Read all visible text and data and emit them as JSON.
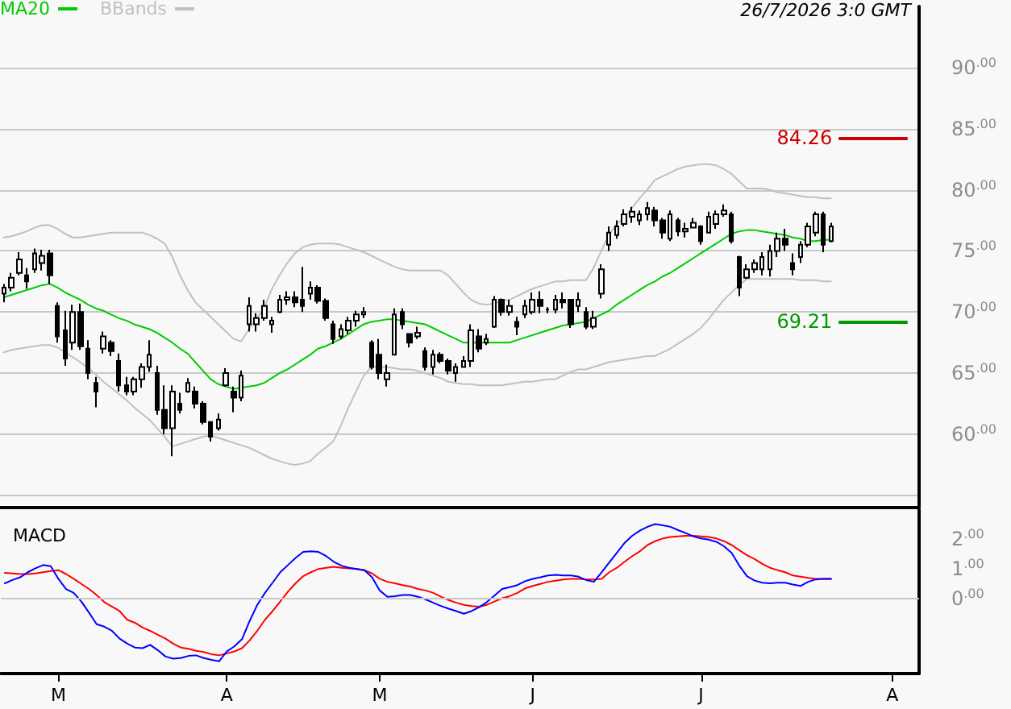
{
  "chart_data": [
    {
      "type": "candlestick",
      "color": "#000000",
      "categories": [
        null,
        null,
        null,
        null,
        null,
        null,
        null,
        null,
        null,
        null,
        null,
        null,
        null,
        null,
        null,
        null,
        null,
        null,
        null,
        null,
        null,
        null,
        null,
        null,
        null,
        null,
        null,
        null,
        null,
        null,
        null,
        null,
        null,
        null,
        null,
        null,
        null,
        null,
        null,
        null,
        null,
        null,
        null,
        null,
        null,
        null,
        null,
        null,
        null,
        null,
        null,
        null,
        null,
        null,
        null,
        null,
        null,
        null,
        null,
        null,
        null,
        null,
        null,
        null,
        null,
        null,
        null,
        null,
        null,
        null,
        null,
        null,
        null,
        null,
        null,
        null,
        null,
        null,
        null,
        null,
        null,
        null,
        null,
        null,
        null,
        null,
        null,
        null,
        null,
        null,
        null,
        null,
        null,
        null,
        null,
        null,
        null,
        null,
        null,
        null,
        null,
        null,
        null,
        null,
        null,
        null,
        null,
        null,
        null,
        null,
        null,
        null,
        null,
        null,
        null,
        null,
        null,
        null,
        null,
        null
      ],
      "ohlc": [
        [
          71.5,
          72.3,
          70.8,
          72.0
        ],
        [
          72.0,
          73.2,
          71.7,
          72.8
        ],
        [
          73.2,
          74.9,
          73.0,
          74.3
        ],
        [
          73.0,
          73.6,
          71.9,
          72.5
        ],
        [
          73.5,
          75.2,
          73.2,
          74.8
        ],
        [
          74.0,
          75.1,
          73.4,
          74.6
        ],
        [
          74.8,
          75.1,
          72.3,
          73.0
        ],
        [
          70.5,
          70.8,
          67.5,
          68.0
        ],
        [
          68.5,
          70.1,
          65.6,
          66.2
        ],
        [
          67.5,
          70.6,
          66.9,
          70.0
        ],
        [
          70.0,
          70.7,
          66.9,
          67.2
        ],
        [
          67.0,
          67.7,
          64.5,
          65.0
        ],
        [
          64.2,
          64.7,
          62.2,
          63.5
        ],
        [
          67.0,
          68.4,
          66.6,
          68.0
        ],
        [
          67.5,
          67.7,
          66.4,
          66.8
        ],
        [
          66.0,
          66.6,
          63.5,
          64.0
        ],
        [
          64.0,
          64.7,
          63.2,
          63.5
        ],
        [
          63.5,
          64.7,
          63.2,
          64.5
        ],
        [
          64.5,
          65.8,
          63.8,
          65.5
        ],
        [
          65.5,
          67.7,
          65.1,
          66.5
        ],
        [
          65.0,
          65.6,
          61.6,
          62.0
        ],
        [
          62.0,
          64.0,
          60.0,
          60.5
        ],
        [
          60.5,
          64.0,
          58.2,
          63.5
        ],
        [
          62.5,
          63.4,
          61.7,
          62.0
        ],
        [
          63.5,
          64.6,
          63.4,
          64.2
        ],
        [
          63.5,
          63.9,
          62.1,
          62.5
        ],
        [
          62.5,
          62.7,
          60.8,
          61.0
        ],
        [
          61.0,
          61.0,
          59.4,
          59.8
        ],
        [
          60.5,
          61.7,
          60.3,
          61.2
        ],
        [
          64.0,
          65.4,
          63.9,
          65.0
        ],
        [
          63.5,
          63.9,
          61.8,
          63.0
        ],
        [
          63.0,
          65.2,
          62.7,
          64.8
        ],
        [
          69.0,
          71.2,
          68.4,
          70.5
        ],
        [
          69.0,
          69.9,
          68.4,
          69.5
        ],
        [
          69.5,
          71.0,
          69.3,
          70.5
        ],
        [
          69.0,
          69.6,
          68.3,
          69.3
        ],
        [
          70.0,
          71.4,
          69.9,
          71.0
        ],
        [
          71.0,
          71.7,
          70.6,
          71.2
        ],
        [
          71.2,
          71.7,
          70.4,
          70.8
        ],
        [
          71.0,
          73.7,
          70.0,
          70.5
        ],
        [
          71.5,
          72.5,
          71.0,
          72.0
        ],
        [
          72.0,
          72.2,
          70.7,
          70.9
        ],
        [
          70.9,
          71.1,
          69.3,
          69.5
        ],
        [
          69.0,
          69.3,
          67.4,
          67.8
        ],
        [
          68.0,
          69.0,
          67.8,
          68.6
        ],
        [
          68.5,
          69.6,
          68.2,
          69.3
        ],
        [
          69.3,
          70.1,
          68.8,
          69.8
        ],
        [
          69.8,
          70.4,
          69.5,
          70.0
        ],
        [
          67.5,
          67.7,
          65.3,
          65.5
        ],
        [
          66.5,
          67.8,
          64.5,
          65.0
        ],
        [
          64.5,
          65.7,
          63.9,
          65.0
        ],
        [
          66.5,
          70.3,
          66.5,
          69.8
        ],
        [
          70.0,
          70.3,
          68.6,
          69.0
        ],
        [
          68.2,
          68.2,
          67.1,
          67.5
        ],
        [
          68.0,
          68.8,
          67.8,
          68.3
        ],
        [
          66.8,
          67.1,
          65.2,
          65.5
        ],
        [
          65.5,
          66.9,
          64.9,
          66.5
        ],
        [
          66.5,
          66.7,
          65.8,
          66.0
        ],
        [
          66.0,
          66.2,
          64.9,
          65.2
        ],
        [
          65.0,
          65.8,
          64.3,
          65.5
        ],
        [
          65.5,
          66.4,
          65.5,
          66.0
        ],
        [
          66.0,
          69.0,
          65.5,
          68.5
        ],
        [
          68.0,
          68.6,
          66.7,
          67.0
        ],
        [
          67.5,
          68.2,
          67.3,
          67.8
        ],
        [
          68.8,
          71.3,
          68.7,
          71.0
        ],
        [
          71.0,
          71.1,
          69.7,
          70.0
        ],
        [
          70.0,
          71.0,
          69.7,
          70.5
        ],
        [
          69.2,
          69.6,
          68.1,
          68.8
        ],
        [
          69.8,
          71.0,
          69.5,
          70.5
        ],
        [
          70.0,
          71.6,
          69.8,
          71.0
        ],
        [
          71.0,
          71.7,
          69.9,
          70.5
        ],
        [
          70.2,
          70.4,
          69.9,
          70.2
        ],
        [
          70.2,
          71.4,
          69.9,
          71.0
        ],
        [
          71.0,
          71.6,
          70.3,
          70.8
        ],
        [
          71.0,
          71.0,
          68.7,
          69.0
        ],
        [
          70.5,
          71.6,
          70.0,
          71.0
        ],
        [
          70.0,
          70.4,
          68.6,
          68.8
        ],
        [
          68.8,
          70.1,
          68.6,
          69.5
        ],
        [
          71.5,
          73.9,
          71.1,
          73.5
        ],
        [
          75.5,
          77.0,
          75.0,
          76.5
        ],
        [
          76.3,
          77.5,
          76.0,
          77.0
        ],
        [
          77.2,
          78.4,
          77.0,
          78.0
        ],
        [
          77.8,
          78.6,
          77.3,
          78.2
        ],
        [
          77.5,
          78.3,
          77.1,
          78.0
        ],
        [
          78.0,
          79.0,
          77.5,
          78.5
        ],
        [
          78.3,
          78.6,
          77.0,
          77.5
        ],
        [
          77.5,
          77.7,
          76.0,
          76.5
        ],
        [
          76.0,
          78.3,
          75.8,
          78.0
        ],
        [
          77.5,
          77.7,
          76.2,
          76.6
        ],
        [
          76.6,
          77.3,
          76.1,
          76.8
        ],
        [
          76.9,
          77.7,
          76.9,
          77.3
        ],
        [
          77.0,
          77.1,
          75.5,
          75.8
        ],
        [
          76.5,
          78.2,
          76.5,
          77.8
        ],
        [
          77.2,
          78.3,
          76.8,
          78.0
        ],
        [
          78.0,
          78.8,
          77.8,
          78.3
        ],
        [
          78.0,
          78.2,
          75.6,
          75.8
        ],
        [
          74.5,
          74.6,
          71.3,
          72.0
        ],
        [
          72.8,
          73.9,
          72.7,
          73.5
        ],
        [
          73.5,
          74.3,
          73.2,
          74.0
        ],
        [
          73.5,
          74.9,
          73.0,
          74.5
        ],
        [
          73.5,
          75.5,
          72.9,
          75.0
        ],
        [
          75.0,
          76.5,
          74.5,
          76.0
        ],
        [
          76.0,
          76.8,
          75.0,
          75.5
        ],
        [
          74.0,
          74.8,
          73.0,
          73.5
        ],
        [
          74.5,
          75.8,
          74.0,
          75.5
        ],
        [
          75.5,
          77.3,
          75.3,
          77.0
        ],
        [
          76.5,
          78.2,
          76.2,
          78.0
        ],
        [
          78.0,
          78.2,
          74.9,
          75.5
        ],
        [
          75.8,
          77.3,
          75.7,
          77.0
        ],
        null,
        null,
        null,
        null,
        null,
        null,
        null,
        null,
        null,
        null,
        null
      ],
      "series": [
        {
          "type": "line",
          "name": "MA20",
          "color": "#00cc00",
          "values": [
            71.2,
            71.4,
            71.6,
            71.8,
            72.0,
            72.2,
            72.3,
            72.0,
            71.6,
            71.3,
            71.0,
            70.6,
            70.3,
            70.1,
            69.8,
            69.5,
            69.3,
            69.0,
            68.8,
            68.6,
            68.3,
            67.9,
            67.5,
            67.0,
            66.6,
            65.9,
            65.2,
            64.5,
            64.1,
            63.9,
            63.7,
            63.8,
            63.9,
            64.0,
            64.2,
            64.6,
            65.0,
            65.3,
            65.7,
            66.1,
            66.5,
            67.0,
            67.2,
            67.5,
            67.8,
            68.2,
            68.6,
            69.0,
            69.2,
            69.3,
            69.4,
            69.4,
            69.3,
            69.2,
            69.1,
            69.0,
            68.7,
            68.4,
            68.1,
            67.8,
            67.5,
            67.5,
            67.5,
            67.5,
            67.5,
            67.5,
            67.5,
            67.7,
            67.9,
            68.1,
            68.3,
            68.5,
            68.7,
            68.9,
            69.0,
            69.1,
            69.2,
            69.5,
            69.8,
            70.1,
            70.6,
            71.0,
            71.4,
            71.8,
            72.2,
            72.5,
            72.9,
            73.2,
            73.6,
            74.0,
            74.4,
            74.8,
            75.2,
            75.6,
            76.0,
            76.4,
            76.6,
            76.7,
            76.7,
            76.6,
            76.5,
            76.4,
            76.3,
            76.1,
            76.0,
            75.8,
            75.8,
            75.9,
            75.9,
            null,
            null,
            null,
            null,
            null,
            null,
            null,
            null,
            null,
            null,
            null
          ]
        },
        {
          "type": "line",
          "name": "BBands",
          "color": "#c0c0c0",
          "values": [
            76.1,
            76.2,
            76.4,
            76.6,
            76.9,
            77.1,
            77.1,
            76.8,
            76.4,
            76.1,
            76.1,
            76.2,
            76.3,
            76.4,
            76.5,
            76.5,
            76.5,
            76.5,
            76.5,
            76.3,
            76.0,
            75.6,
            74.5,
            73.0,
            71.8,
            70.8,
            70.2,
            69.6,
            69.0,
            68.4,
            67.8,
            67.6,
            68.6,
            69.5,
            70.3,
            71.9,
            73.0,
            74.0,
            74.8,
            75.3,
            75.5,
            75.6,
            75.6,
            75.6,
            75.5,
            75.3,
            75.1,
            74.9,
            74.6,
            74.3,
            74.0,
            73.7,
            73.5,
            73.4,
            73.4,
            73.4,
            73.4,
            73.4,
            73.0,
            72.3,
            71.6,
            71.0,
            70.7,
            70.6,
            70.7,
            70.9,
            71.0,
            71.3,
            71.6,
            71.9,
            72.1,
            72.3,
            72.5,
            72.5,
            72.6,
            72.6,
            72.6,
            73.6,
            75.0,
            76.3,
            77.2,
            77.7,
            78.5,
            79.3,
            80.0,
            80.8,
            81.1,
            81.4,
            81.7,
            81.9,
            82.0,
            82.1,
            82.1,
            82.0,
            81.7,
            81.3,
            80.7,
            80.1,
            80.1,
            80.1,
            80.0,
            79.8,
            79.7,
            79.6,
            79.5,
            79.4,
            79.4,
            79.3,
            79.3,
            null,
            null,
            null,
            null,
            null,
            null,
            null,
            null,
            null,
            null,
            null
          ]
        },
        {
          "type": "line",
          "color": "#c0c0c0",
          "values": [
            66.7,
            66.9,
            67.0,
            67.1,
            67.2,
            67.3,
            67.3,
            67.1,
            66.7,
            66.3,
            65.9,
            65.4,
            64.9,
            64.3,
            63.8,
            63.3,
            62.8,
            62.2,
            61.7,
            61.2,
            60.5,
            59.8,
            59.0,
            59.2,
            59.4,
            59.6,
            59.8,
            59.9,
            59.7,
            59.5,
            59.3,
            59.1,
            58.9,
            58.6,
            58.3,
            58.0,
            57.8,
            57.6,
            57.5,
            57.6,
            57.8,
            58.4,
            58.9,
            59.4,
            60.7,
            62.2,
            63.5,
            64.8,
            65.5,
            65.5,
            65.5,
            65.4,
            65.3,
            65.3,
            65.2,
            65.0,
            64.8,
            64.6,
            64.3,
            64.2,
            64.1,
            64.1,
            64.0,
            64.0,
            64.0,
            64.0,
            64.1,
            64.2,
            64.3,
            64.3,
            64.4,
            64.5,
            64.5,
            64.8,
            65.1,
            65.3,
            65.3,
            65.5,
            65.7,
            65.9,
            66.0,
            66.1,
            66.2,
            66.3,
            66.4,
            66.4,
            66.7,
            67.0,
            67.4,
            67.8,
            68.2,
            68.7,
            69.4,
            70.2,
            71.0,
            71.6,
            72.2,
            72.7,
            72.7,
            72.7,
            72.7,
            72.7,
            72.7,
            72.7,
            72.6,
            72.6,
            72.6,
            72.5,
            72.5,
            null,
            null,
            null,
            null,
            null,
            null,
            null,
            null,
            null,
            null,
            null
          ]
        }
      ],
      "ylim": [
        54,
        95
      ],
      "yticks": [
        {
          "value": 55,
          "label": null
        },
        {
          "value": 60,
          "label": "60.00"
        },
        {
          "value": 65,
          "label": "65.00"
        },
        {
          "value": 70,
          "label": "70.00"
        },
        {
          "value": 75,
          "label": "75.00"
        },
        {
          "value": 80,
          "label": "80.00"
        },
        {
          "value": 85,
          "label": "85.00"
        },
        {
          "value": 90,
          "label": "90.00"
        }
      ],
      "ref_lines": [
        {
          "axis": "y",
          "value": 84.26,
          "label": "84.26",
          "color": "#cc0000"
        },
        {
          "axis": "y",
          "value": 69.21,
          "label": "69.21",
          "color": "#009900"
        }
      ],
      "annotations": [
        "26/7/2026 3:0 GMT"
      ],
      "grid": "y",
      "legend": "top left",
      "marker": "none",
      "line_style": "solid",
      "tick_labels": "y"
    },
    {
      "type": "line",
      "title": "MACD",
      "categories": [
        null,
        null,
        null,
        null,
        null,
        null,
        null,
        "M",
        null,
        null,
        null,
        null,
        null,
        null,
        null,
        null,
        null,
        null,
        null,
        null,
        null,
        null,
        null,
        null,
        null,
        null,
        null,
        null,
        null,
        "A",
        null,
        null,
        null,
        null,
        null,
        null,
        null,
        null,
        null,
        null,
        null,
        null,
        null,
        null,
        null,
        null,
        null,
        null,
        null,
        "M",
        null,
        null,
        null,
        null,
        null,
        null,
        null,
        null,
        null,
        null,
        null,
        null,
        null,
        null,
        null,
        null,
        null,
        null,
        null,
        "J",
        null,
        null,
        null,
        null,
        null,
        null,
        null,
        null,
        null,
        null,
        null,
        null,
        null,
        null,
        null,
        null,
        null,
        null,
        null,
        null,
        null,
        "J",
        null,
        null,
        null,
        null,
        null,
        null,
        null,
        null,
        null,
        null,
        null,
        null,
        null,
        null,
        null,
        null,
        null,
        null,
        null,
        null,
        null,
        null,
        null,
        null,
        "A",
        null,
        null,
        null
      ],
      "series": [
        {
          "color": "#ff0000",
          "values": [
            0.87,
            0.85,
            0.83,
            0.83,
            0.85,
            0.89,
            0.93,
            0.96,
            0.83,
            0.67,
            0.5,
            0.33,
            0.13,
            -0.11,
            -0.26,
            -0.41,
            -0.7,
            -0.8,
            -0.96,
            -1.07,
            -1.2,
            -1.33,
            -1.5,
            -1.63,
            -1.67,
            -1.74,
            -1.78,
            -1.85,
            -1.89,
            -1.83,
            -1.76,
            -1.65,
            -1.39,
            -1.07,
            -0.7,
            -0.41,
            -0.09,
            0.24,
            0.52,
            0.76,
            0.89,
            1.0,
            1.04,
            1.07,
            1.04,
            1.02,
            1.0,
            0.96,
            0.85,
            0.67,
            0.57,
            0.52,
            0.46,
            0.41,
            0.33,
            0.28,
            0.2,
            0.07,
            -0.04,
            -0.13,
            -0.2,
            -0.24,
            -0.26,
            -0.2,
            -0.09,
            0.02,
            0.09,
            0.2,
            0.35,
            0.43,
            0.5,
            0.57,
            0.61,
            0.65,
            0.67,
            0.67,
            0.65,
            0.65,
            0.67,
            0.89,
            1.04,
            1.24,
            1.43,
            1.59,
            1.8,
            1.93,
            2.02,
            2.07,
            2.09,
            2.11,
            2.11,
            2.09,
            2.07,
            2.02,
            1.93,
            1.8,
            1.63,
            1.46,
            1.33,
            1.17,
            1.04,
            0.96,
            0.89,
            0.78,
            0.74,
            0.7,
            0.67,
            0.67,
            0.67,
            null,
            null,
            null,
            null,
            null,
            null,
            null,
            null,
            null,
            null,
            null
          ]
        },
        {
          "color": "#0000ff",
          "values": [
            0.52,
            0.63,
            0.72,
            0.89,
            1.02,
            1.13,
            1.09,
            0.67,
            0.33,
            0.2,
            -0.09,
            -0.46,
            -0.85,
            -0.93,
            -1.07,
            -1.33,
            -1.5,
            -1.63,
            -1.65,
            -1.54,
            -1.72,
            -1.93,
            -2.0,
            -1.98,
            -1.91,
            -1.89,
            -1.98,
            -2.04,
            -2.09,
            -1.76,
            -1.59,
            -1.35,
            -0.74,
            -0.2,
            0.2,
            0.54,
            0.89,
            1.13,
            1.37,
            1.57,
            1.59,
            1.57,
            1.43,
            1.24,
            1.11,
            1.04,
            1.0,
            0.96,
            0.72,
            0.28,
            0.07,
            0.09,
            0.13,
            0.13,
            0.07,
            -0.02,
            -0.13,
            -0.24,
            -0.33,
            -0.41,
            -0.5,
            -0.41,
            -0.28,
            -0.11,
            0.11,
            0.33,
            0.39,
            0.46,
            0.59,
            0.67,
            0.72,
            0.78,
            0.8,
            0.78,
            0.78,
            0.74,
            0.63,
            0.57,
            0.89,
            1.22,
            1.54,
            1.87,
            2.11,
            2.28,
            2.41,
            2.5,
            2.46,
            2.41,
            2.3,
            2.2,
            2.09,
            2.02,
            1.98,
            1.91,
            1.76,
            1.54,
            1.11,
            0.76,
            0.61,
            0.54,
            0.52,
            0.54,
            0.54,
            0.48,
            0.43,
            0.57,
            0.65,
            0.67,
            0.67,
            null,
            null,
            null,
            null,
            null,
            null,
            null,
            null,
            null,
            null,
            null
          ]
        }
      ],
      "ylim": [
        -2.5,
        3.0
      ],
      "yticks": [
        {
          "value": 0,
          "label": "0.00"
        },
        {
          "value": 1,
          "label": "1.00"
        },
        {
          "value": 2,
          "label": "2.00"
        }
      ],
      "ref_lines": [
        {
          "axis": "y",
          "value": 0,
          "color": "#c8c8c8"
        }
      ],
      "marker": "none",
      "line_style": "solid"
    }
  ]
}
